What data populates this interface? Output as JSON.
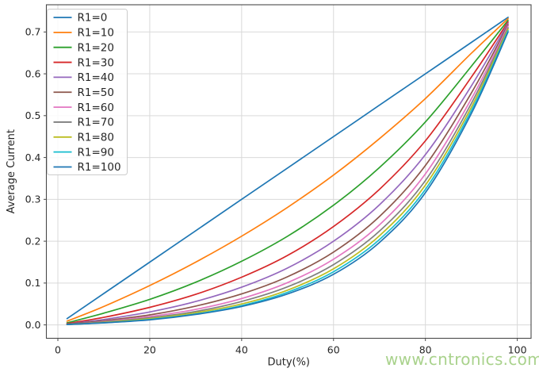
{
  "chart_data": {
    "type": "line",
    "title": "",
    "xlabel": "Duty(%)",
    "ylabel": "Average Current",
    "xlim": [
      -2.5,
      103
    ],
    "ylim": [
      -0.032,
      0.765
    ],
    "x_ticks": [
      0,
      20,
      40,
      60,
      80,
      100
    ],
    "x_tick_labels": [
      "0",
      "20",
      "40",
      "60",
      "80",
      "100"
    ],
    "y_ticks": [
      0.0,
      0.1,
      0.2,
      0.3,
      0.4,
      0.5,
      0.6,
      0.7
    ],
    "y_tick_labels": [
      "0.0",
      "0.1",
      "0.2",
      "0.3",
      "0.4",
      "0.5",
      "0.6",
      "0.7"
    ],
    "grid": true,
    "grid_color": "#d9d9d9",
    "spine_color": "#4a4a4a",
    "text_color": "#262626",
    "legend_position": "upper left",
    "x": [
      2,
      10,
      20,
      30,
      40,
      50,
      60,
      70,
      80,
      90,
      98
    ],
    "series": [
      {
        "name": "R1=0",
        "color": "#1f77b4",
        "values": [
          0.015,
          0.075,
          0.15,
          0.225,
          0.3,
          0.375,
          0.45,
          0.525,
          0.6,
          0.675,
          0.735
        ]
      },
      {
        "name": "R1=10",
        "color": "#ff7f0e",
        "values": [
          0.009,
          0.044,
          0.094,
          0.15,
          0.212,
          0.281,
          0.358,
          0.445,
          0.541,
          0.649,
          0.732
        ]
      },
      {
        "name": "R1=20",
        "color": "#2ca02c",
        "values": [
          0.005,
          0.028,
          0.061,
          0.102,
          0.152,
          0.212,
          0.286,
          0.376,
          0.485,
          0.618,
          0.728
        ]
      },
      {
        "name": "R1=30",
        "color": "#d62728",
        "values": [
          0.003,
          0.018,
          0.042,
          0.073,
          0.114,
          0.166,
          0.235,
          0.324,
          0.44,
          0.592,
          0.724
        ]
      },
      {
        "name": "R1=40",
        "color": "#9467bd",
        "values": [
          0.002,
          0.013,
          0.031,
          0.056,
          0.09,
          0.136,
          0.2,
          0.287,
          0.407,
          0.571,
          0.721
        ]
      },
      {
        "name": "R1=50",
        "color": "#8c564b",
        "values": [
          0.002,
          0.01,
          0.024,
          0.045,
          0.074,
          0.115,
          0.174,
          0.259,
          0.381,
          0.554,
          0.717
        ]
      },
      {
        "name": "R1=60",
        "color": "#e377c2",
        "values": [
          0.001,
          0.008,
          0.02,
          0.037,
          0.063,
          0.101,
          0.157,
          0.239,
          0.361,
          0.54,
          0.714
        ]
      },
      {
        "name": "R1=70",
        "color": "#7f7f7f",
        "values": [
          0.001,
          0.007,
          0.017,
          0.032,
          0.056,
          0.091,
          0.144,
          0.224,
          0.345,
          0.529,
          0.71
        ]
      },
      {
        "name": "R1=80",
        "color": "#bcbd22",
        "values": [
          0.001,
          0.006,
          0.015,
          0.029,
          0.05,
          0.083,
          0.134,
          0.213,
          0.334,
          0.52,
          0.707
        ]
      },
      {
        "name": "R1=90",
        "color": "#17becf",
        "values": [
          0.001,
          0.005,
          0.013,
          0.026,
          0.046,
          0.078,
          0.127,
          0.204,
          0.324,
          0.512,
          0.703
        ]
      },
      {
        "name": "R1=100",
        "color": "#1f77b4",
        "values": [
          0.001,
          0.005,
          0.012,
          0.025,
          0.044,
          0.074,
          0.121,
          0.197,
          0.316,
          0.505,
          0.7
        ]
      }
    ]
  },
  "watermark": {
    "text": "www.cntronics.com",
    "color": "#a9d28c"
  }
}
